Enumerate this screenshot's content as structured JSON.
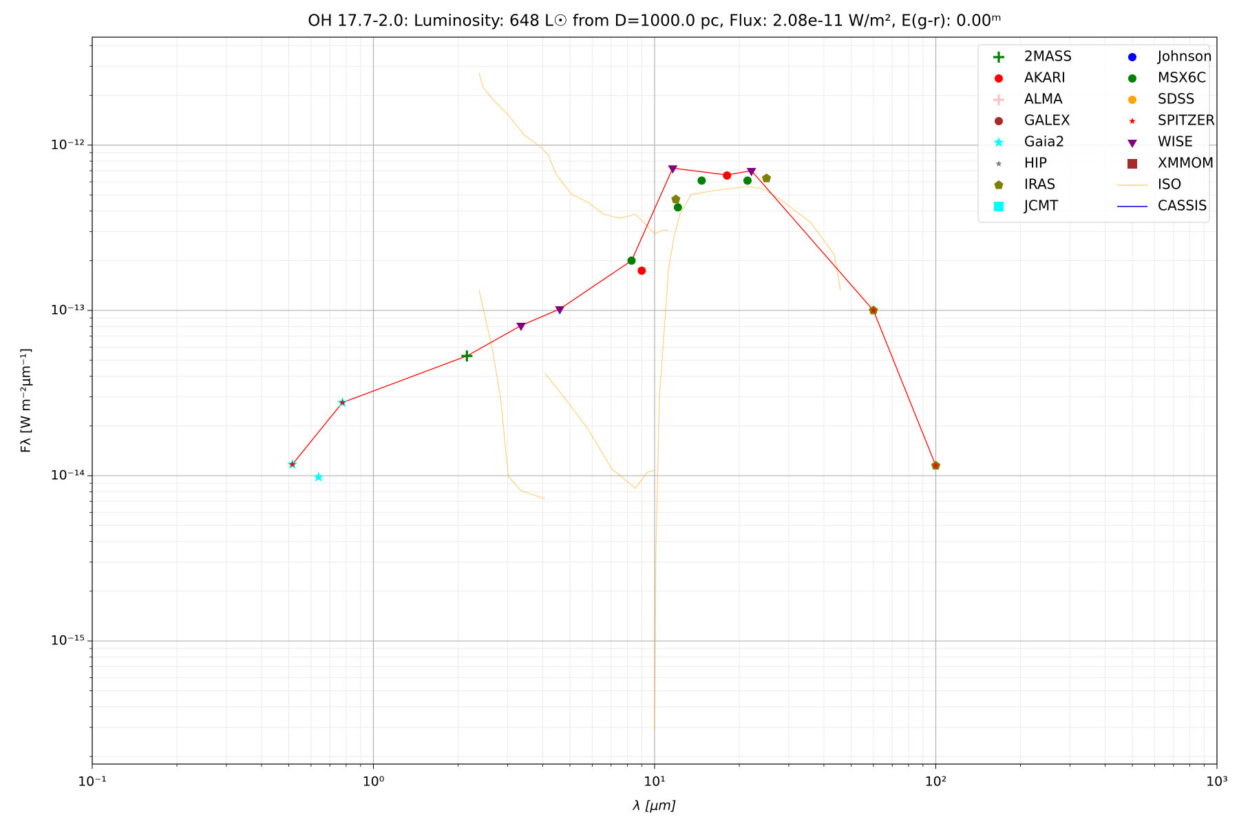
{
  "chart_data": {
    "type": "scatter",
    "title": "OH 17.7-2.0:  Luminosity: 648 L☉ from D=1000.0 pc, Flux: 2.08e-11 W/m², E(g-r): 0.00ᵐ",
    "x_label": "λ [μm]",
    "y_label": "Fλ [W m⁻²μm⁻¹]",
    "log_x": true,
    "log_y": true,
    "grid": true,
    "minor_grid": true,
    "legend": "upper right",
    "legend_columns": 2,
    "xlim": [
      0.1,
      1000
    ],
    "ylim": [
      1.8e-16,
      4.5e-12
    ],
    "xticks": [
      {
        "value": 0.1,
        "label": "10⁻¹"
      },
      {
        "value": 1,
        "label": "10⁰"
      },
      {
        "value": 10,
        "label": "10¹"
      },
      {
        "value": 100,
        "label": "10²"
      },
      {
        "value": 1000,
        "label": "10³"
      }
    ],
    "yticks": [
      {
        "value": 1e-15,
        "label": "10⁻¹⁵"
      },
      {
        "value": 1e-14,
        "label": "10⁻¹⁴"
      },
      {
        "value": 1e-13,
        "label": "10⁻¹³"
      },
      {
        "value": 1e-12,
        "label": "10⁻¹²"
      }
    ],
    "series": [
      {
        "name": "2MASS",
        "color": "#008000",
        "marker": "plus",
        "marker_size": 8,
        "x": [
          2.15
        ],
        "values": [
          5.3e-14
        ]
      },
      {
        "name": "AKARI",
        "color": "#ff0000",
        "marker": "circle",
        "marker_size": 6,
        "x": [
          9.0,
          18.1
        ],
        "values": [
          1.74e-13,
          6.55e-13
        ]
      },
      {
        "name": "ALMA",
        "color": "#ffc0cb",
        "marker": "plus",
        "marker_size": 8,
        "x": [],
        "values": []
      },
      {
        "name": "GALEX",
        "color": "#a52a2a",
        "marker": "circle",
        "marker_size": 6,
        "x": [],
        "values": []
      },
      {
        "name": "Gaia2",
        "color": "#00ffff",
        "marker": "star",
        "marker_size": 8,
        "x": [
          0.515,
          0.638,
          0.776
        ],
        "values": [
          1.17e-14,
          9.8e-15,
          2.77e-14
        ]
      },
      {
        "name": "HIP",
        "color": "#808080",
        "marker": "star",
        "marker_size": 5,
        "x": [],
        "values": []
      },
      {
        "name": "IRAS",
        "color": "#808000",
        "marker": "pentagon",
        "marker_size": 7,
        "x": [
          11.9,
          25,
          60,
          100
        ],
        "values": [
          4.7e-13,
          6.3e-13,
          1e-13,
          1.15e-14
        ]
      },
      {
        "name": "JCMT",
        "color": "#00ffff",
        "marker": "square",
        "marker_size": 7,
        "x": [],
        "values": []
      },
      {
        "name": "Johnson",
        "color": "#0000ff",
        "marker": "circle",
        "marker_size": 6,
        "x": [],
        "values": []
      },
      {
        "name": "MSX6C",
        "color": "#008000",
        "marker": "circle",
        "marker_size": 6,
        "x": [
          8.28,
          12.1,
          14.7,
          21.4
        ],
        "values": [
          2e-13,
          4.2e-13,
          6.1e-13,
          6.1e-13
        ]
      },
      {
        "name": "SDSS",
        "color": "#ffa500",
        "marker": "circle",
        "marker_size": 6,
        "x": [],
        "values": []
      },
      {
        "name": "SPITZER",
        "color": "#ff0000",
        "marker": "star",
        "marker_size": 5,
        "x": [
          0.515,
          0.776,
          60,
          100
        ],
        "values": [
          1.17e-14,
          2.77e-14,
          1e-13,
          1.15e-14
        ]
      },
      {
        "name": "WISE",
        "color": "#800080",
        "marker": "triangle-down",
        "marker_size": 7,
        "x": [
          3.35,
          4.6,
          11.6,
          22.1
        ],
        "values": [
          8.1e-14,
          1.02e-13,
          7.26e-13,
          7e-13
        ]
      },
      {
        "name": "XMMOM",
        "color": "#a52a2a",
        "marker": "square",
        "marker_size": 7,
        "x": [],
        "values": []
      },
      {
        "name": "ISO",
        "color": "#ffa500",
        "line": true,
        "alpha": 0.5,
        "x": [
          2.375,
          2.455,
          2.65,
          3.02,
          3.44,
          3.92,
          4.18,
          4.47,
          5.08,
          5.79,
          6.6,
          7.51,
          8.55,
          9.43,
          10.0,
          10.7,
          11.2,
          null,
          10.0,
          10.1,
          10.4,
          10.8,
          11.2,
          11.7,
          12.3,
          13.5,
          16.4,
          21.3,
          24.2,
          27.6,
          35.8,
          43.5,
          45.8,
          null,
          2.375,
          2.65,
          2.83,
          3.02,
          3.35,
          4.07,
          null,
          4.07,
          4.76,
          5.79,
          7.04,
          8.55,
          9.43,
          10.0
        ],
        "values": [
          2.74e-12,
          2.24e-12,
          1.9e-12,
          1.52e-12,
          1.15e-12,
          9.8e-13,
          8.75e-13,
          6.64e-13,
          5.03e-13,
          4.51e-13,
          3.82e-13,
          3.61e-13,
          3.82e-13,
          3.24e-13,
          2.9e-13,
          3.06e-13,
          3.06e-13,
          null,
          2.86e-16,
          3.27e-15,
          2.99e-14,
          7.26e-14,
          1.76e-13,
          2.74e-13,
          3.82e-13,
          5.03e-13,
          5.32e-13,
          5.62e-13,
          5.45e-13,
          4.77e-13,
          3.42e-13,
          2.19e-13,
          1.33e-13,
          null,
          1.33e-13,
          5.81e-14,
          2.99e-14,
          9.9e-15,
          8.1e-15,
          7.26e-15,
          null,
          4.17e-14,
          2.99e-14,
          1.92e-14,
          1.1e-14,
          8.4e-15,
          1.05e-14,
          1.08e-14
        ]
      },
      {
        "name": "CASSIS",
        "color": "#0000cd",
        "line": true,
        "alpha": 1,
        "x": [],
        "values": []
      },
      {
        "color": "#ff0000",
        "line": true,
        "alpha": 1,
        "x": [
          0.515,
          0.776,
          2.15,
          3.35,
          4.6,
          8.28,
          11.6,
          18.1,
          22.1,
          60,
          100
        ],
        "values": [
          1.17e-14,
          2.77e-14,
          5.3e-14,
          8.1e-14,
          1.02e-13,
          2e-13,
          7.26e-13,
          6.6e-13,
          7e-13,
          1e-13,
          1.15e-14
        ]
      }
    ]
  }
}
